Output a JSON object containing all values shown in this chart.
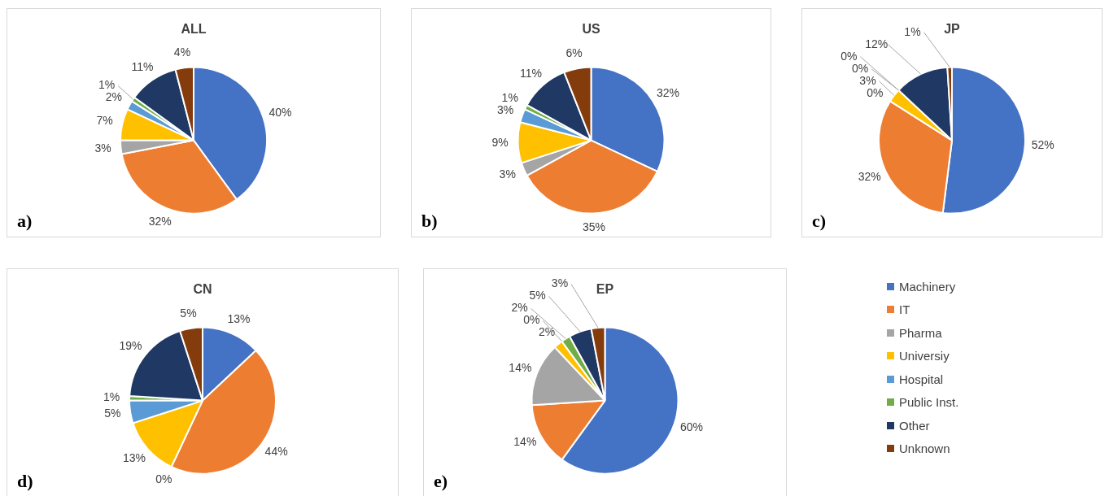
{
  "chart_data": [
    {
      "type": "pie",
      "title": "ALL",
      "categories": [
        "Machinery",
        "IT",
        "Pharma",
        "Universiy",
        "Hospital",
        "Public Inst.",
        "Other",
        "Unknown"
      ],
      "colors": [
        "#4472c4",
        "#ed7d31",
        "#a5a5a5",
        "#ffc000",
        "#5b9bd5",
        "#70ad47",
        "#203864",
        "#843c0c"
      ],
      "values": [
        40,
        32,
        3,
        7,
        2,
        1,
        11,
        4
      ],
      "value_labels": [
        "40%",
        "32%",
        "3%",
        "7%",
        "2%",
        "1%",
        "11%",
        "4%"
      ],
      "annotations": [
        "a)"
      ],
      "legend": "right"
    },
    {
      "type": "pie",
      "title": "US",
      "categories": [
        null,
        null,
        null,
        null,
        null,
        null,
        null,
        null
      ],
      "colors": [
        "#4472c4",
        "#ed7d31",
        "#a5a5a5",
        "#ffc000",
        "#5b9bd5",
        "#70ad47",
        "#203864",
        "#843c0c"
      ],
      "values": [
        32,
        35,
        3,
        9,
        3,
        1,
        11,
        6
      ],
      "value_labels": [
        "32%",
        "35%",
        "3%",
        "9%",
        "3%",
        "1%",
        "11%",
        "6%"
      ],
      "annotations": [
        "b)"
      ]
    },
    {
      "type": "pie",
      "title": "JP",
      "categories": [
        null,
        null,
        null,
        null,
        null,
        null,
        null,
        null
      ],
      "colors": [
        "#4472c4",
        "#ed7d31",
        "#a5a5a5",
        "#ffc000",
        "#5b9bd5",
        "#70ad47",
        "#203864",
        "#843c0c"
      ],
      "values": [
        52,
        32,
        0,
        3,
        0,
        0,
        12,
        1
      ],
      "value_labels": [
        "52%",
        "32%",
        "0%",
        "3%",
        "0%",
        "0%",
        "12%",
        "1%"
      ],
      "annotations": [
        "c)"
      ]
    },
    {
      "type": "pie",
      "title": "CN",
      "categories": [
        null,
        null,
        null,
        null,
        null,
        null,
        null,
        null
      ],
      "colors": [
        "#4472c4",
        "#ed7d31",
        "#a5a5a5",
        "#ffc000",
        "#5b9bd5",
        "#70ad47",
        "#203864",
        "#843c0c"
      ],
      "values": [
        13,
        44,
        0,
        13,
        5,
        1,
        19,
        5
      ],
      "value_labels": [
        "13%",
        "44%",
        "0%",
        "13%",
        "5%",
        "1%",
        "19%",
        "5%"
      ],
      "annotations": [
        "d)"
      ]
    },
    {
      "type": "pie",
      "title": "EP",
      "categories": [
        null,
        null,
        null,
        null,
        null,
        null,
        null,
        null
      ],
      "colors": [
        "#4472c4",
        "#ed7d31",
        "#a5a5a5",
        "#ffc000",
        "#5b9bd5",
        "#70ad47",
        "#203864",
        "#843c0c"
      ],
      "values": [
        60,
        14,
        14,
        2,
        0,
        2,
        5,
        3
      ],
      "value_labels": [
        "60%",
        "14%",
        "14%",
        "2%",
        "0%",
        "2%",
        "5%",
        "3%"
      ],
      "annotations": [
        "e)"
      ]
    }
  ]
}
